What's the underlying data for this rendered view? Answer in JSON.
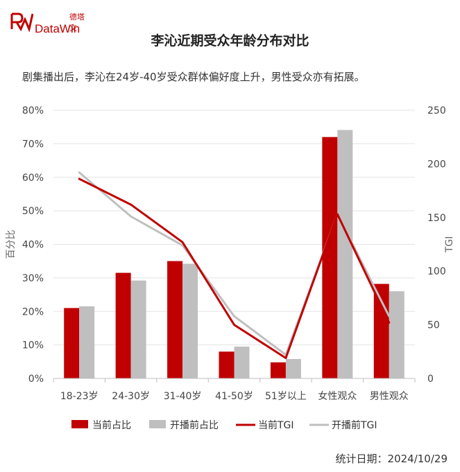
{
  "logo": {
    "cn": "德塔文",
    "en": "DataWin"
  },
  "title": "李沁近期受众年龄分布对比",
  "subtitle": "剧集播出后，李沁在24岁-40岁受众群体偏好度上升，男性受众亦有拓展。",
  "footer": "统计日期：2024/10/29",
  "colors": {
    "current": "#c00000",
    "previous": "#bfbfbf",
    "brand": "#c00000"
  },
  "chart_data": {
    "type": "bar",
    "categories": [
      "18-23岁",
      "24-30岁",
      "31-40岁",
      "41-50岁",
      "51岁以上",
      "女性观众",
      "男性观众"
    ],
    "series": [
      {
        "name": "当前占比",
        "type": "bar",
        "axis": "left",
        "values": [
          21,
          31.5,
          35,
          8,
          4.8,
          72,
          28.2
        ]
      },
      {
        "name": "开播前占比",
        "type": "bar",
        "axis": "left",
        "values": [
          21.5,
          29.2,
          34.2,
          9.5,
          5.8,
          74.1,
          26
        ]
      },
      {
        "name": "当前TGI",
        "type": "line",
        "axis": "right",
        "values": [
          186,
          162,
          127,
          50,
          19,
          153,
          52
        ]
      },
      {
        "name": "开播前TGI",
        "type": "line",
        "axis": "right",
        "values": [
          192,
          151,
          124,
          58,
          22,
          153,
          58
        ]
      }
    ],
    "ylabel": "百分比",
    "y2label": "TGI",
    "ylim": [
      0,
      80
    ],
    "yticks": [
      "0%",
      "10%",
      "20%",
      "30%",
      "40%",
      "50%",
      "60%",
      "70%",
      "80%"
    ],
    "y2lim": [
      0,
      250
    ],
    "y2ticks": [
      "0",
      "50",
      "100",
      "150",
      "200",
      "250"
    ],
    "grid": true,
    "legend": "bottom"
  }
}
